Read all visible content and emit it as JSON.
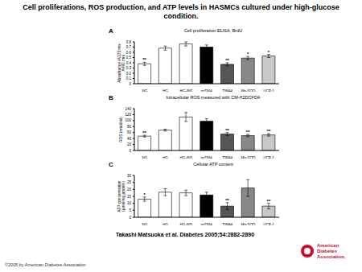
{
  "slide": {
    "title": "Cell proliferations, ROS production, and ATP levels in HASMCs cultured under high-glucose condition.",
    "citation": "Takashi Matsuoka et al. Diabetes 2005;54:2882-2890",
    "footer": "©2005 by American Diabetes Association",
    "logo": "American Diabetes Association."
  },
  "chart_data": [
    {
      "type": "bar",
      "panel": "A",
      "title": "Cell proliferation ELISA, BrdU",
      "y_label": "Absorbance (A370 nm-A492 nm)",
      "categories": [
        "NG",
        "HG",
        "HG-INS",
        "pcDNA",
        "TIM44",
        "Mn-SOD",
        "UCP-1"
      ],
      "values": [
        0.38,
        0.68,
        0.76,
        0.7,
        0.37,
        0.49,
        0.53
      ],
      "errors": [
        0.03,
        0.04,
        0.04,
        0.04,
        0.03,
        0.03,
        0.03
      ],
      "annotations": [
        "**",
        null,
        null,
        null,
        "**",
        "*",
        "*"
      ],
      "colors": [
        "#ffffff",
        "#ffffff",
        "#ffffff",
        "#000000",
        "#555555",
        "#888888",
        "#c8c8c8"
      ],
      "ylim": [
        0,
        0.8
      ],
      "yticks": [
        0,
        0.1,
        0.2,
        0.3,
        0.4,
        0.5,
        0.6,
        0.7,
        0.8
      ],
      "grid": false
    },
    {
      "type": "bar",
      "panel": "B",
      "title": "Intracellular ROS measured with CM-H2DCFDA",
      "y_label": "ROS (nmol/ml)",
      "categories": [
        "NG",
        "HG",
        "HG-INS",
        "pcDNA",
        "TIM44",
        "Mn-SOD",
        "UCP-1"
      ],
      "values": [
        48,
        68,
        112,
        98,
        55,
        50,
        52
      ],
      "errors": [
        3,
        3,
        15,
        8,
        5,
        4,
        4
      ],
      "annotations": [
        "**",
        null,
        null,
        null,
        "**",
        "**",
        "**"
      ],
      "colors": [
        "#ffffff",
        "#ffffff",
        "#ffffff",
        "#000000",
        "#555555",
        "#888888",
        "#c8c8c8"
      ],
      "ylim": [
        0,
        140
      ],
      "yticks": [
        0,
        20,
        40,
        60,
        80,
        100,
        120,
        140
      ],
      "grid": false
    },
    {
      "type": "bar",
      "panel": "C",
      "title": "Cellular ATP content",
      "y_label": "ATP concentration (µmol/mg protein)",
      "categories": [
        "NG",
        "HG",
        "HG-INS",
        "pcDNA",
        "TIM44",
        "Mn-SOD",
        "UCP-1"
      ],
      "values": [
        13,
        18,
        17.5,
        16,
        8,
        21,
        8
      ],
      "errors": [
        1.5,
        2.5,
        2,
        2,
        2.5,
        6,
        2
      ],
      "annotations": [
        "*",
        null,
        null,
        null,
        "**",
        null,
        "**"
      ],
      "colors": [
        "#ffffff",
        "#ffffff",
        "#ffffff",
        "#000000",
        "#555555",
        "#888888",
        "#c8c8c8"
      ],
      "ylim": [
        0,
        30
      ],
      "yticks": [
        0,
        5,
        10,
        15,
        20,
        25,
        30
      ],
      "grid": false
    }
  ]
}
